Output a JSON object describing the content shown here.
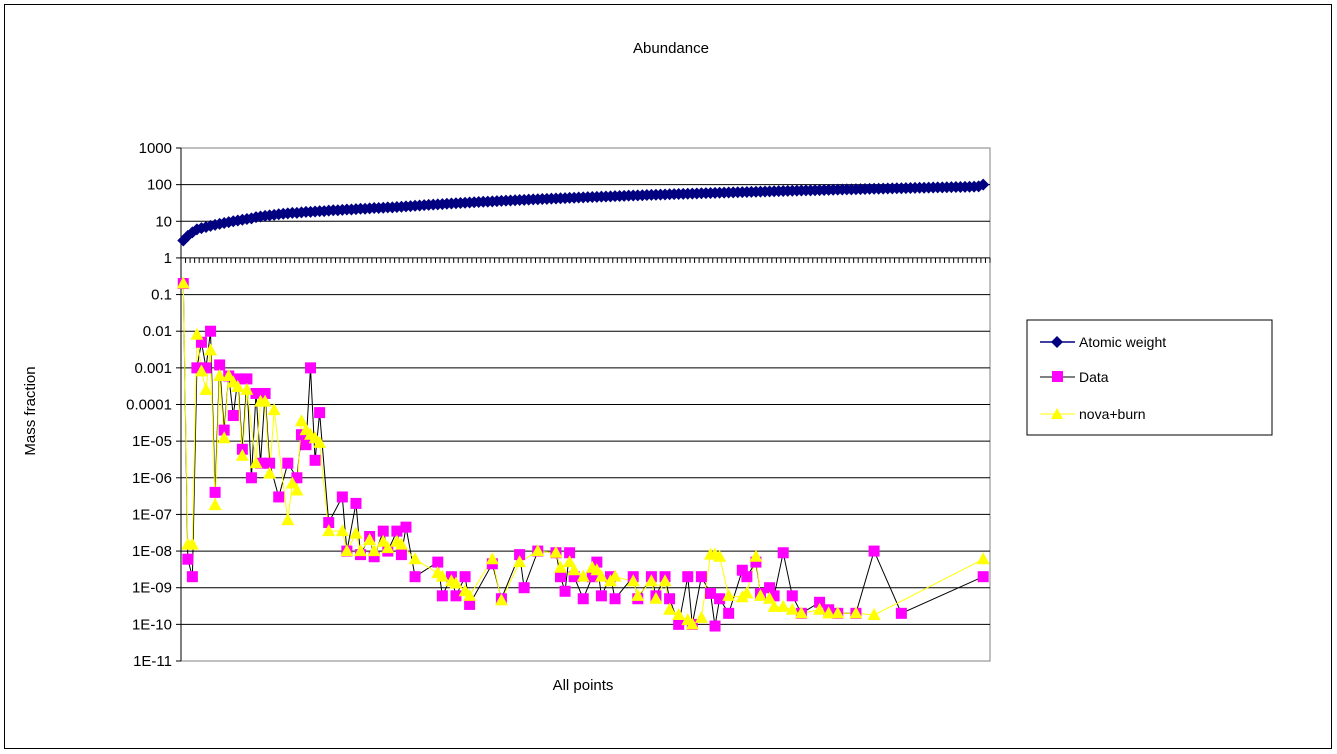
{
  "chart_data": {
    "type": "line",
    "title": "Abundance",
    "xlabel": "All points",
    "ylabel": "Mass fraction",
    "y_scale": "log",
    "ylim": [
      1e-11,
      1000
    ],
    "y_tick_labels": [
      "1000",
      "100",
      "10",
      "1",
      "0.1",
      "0.01",
      "0.001",
      "0.0001",
      "1E-05",
      "1E-06",
      "1E-07",
      "1E-08",
      "1E-09",
      "1E-10",
      "1E-11"
    ],
    "grid": "horizontal",
    "legend_position": "right",
    "x_count": 178,
    "series": [
      {
        "name": "Atomic weight",
        "color": "#000080",
        "marker": "diamond",
        "values": [
          3,
          4,
          5,
          6,
          6.5,
          7,
          7.5,
          8,
          8.5,
          9,
          9.5,
          10,
          10.5,
          11,
          11.5,
          12,
          13,
          13.5,
          14,
          14.5,
          15,
          15.5,
          16,
          16.5,
          17,
          17,
          17.5,
          18,
          18,
          18.5,
          19,
          19,
          19.5,
          20,
          20,
          20.5,
          21,
          21,
          21.5,
          22,
          22,
          22.5,
          23,
          23,
          23.5,
          24,
          24,
          24.5,
          25,
          25.5,
          26,
          26.5,
          27,
          27.5,
          28,
          28.5,
          29,
          29.5,
          30,
          30.5,
          31,
          31.5,
          32,
          32.5,
          33,
          33.5,
          34,
          34.5,
          35,
          35.5,
          36,
          36.5,
          37,
          37.5,
          38,
          38.5,
          39,
          39.5,
          40,
          40.5,
          41,
          41.5,
          42,
          42.5,
          43,
          43.5,
          44,
          44.5,
          45,
          45.5,
          46,
          46.5,
          47,
          47.5,
          48,
          48.5,
          49,
          49.5,
          50,
          50.5,
          51,
          51.5,
          52,
          52.5,
          53,
          53.5,
          54,
          54.5,
          55,
          55.5,
          56,
          56.5,
          57,
          57.5,
          58,
          58.5,
          59,
          59.5,
          60,
          60.5,
          61,
          61.5,
          62,
          62.5,
          63,
          63.5,
          64,
          64.5,
          65,
          65.5,
          66,
          66.5,
          67,
          67.5,
          68,
          68.5,
          69,
          69.5,
          70,
          70.5,
          71,
          71.5,
          72,
          72.5,
          73,
          73.5,
          74,
          74.5,
          75,
          75.5,
          76,
          76.5,
          77,
          77.5,
          78,
          78.5,
          79,
          79.5,
          80,
          80.5,
          81,
          81.5,
          82,
          82.5,
          83,
          83.5,
          84,
          84.5,
          85,
          85.5,
          86,
          86.5,
          87,
          87.5,
          88,
          90,
          100
        ]
      },
      {
        "name": "Data",
        "color": "#ff00ff",
        "marker": "square",
        "points": [
          [
            0,
            0.2
          ],
          [
            1,
            6e-09
          ],
          [
            2,
            2e-09
          ],
          [
            3,
            0.001
          ],
          [
            4,
            0.005
          ],
          [
            5,
            0.001
          ],
          [
            6,
            0.01
          ],
          [
            7,
            4e-07
          ],
          [
            8,
            0.0012
          ],
          [
            9,
            2e-05
          ],
          [
            10,
            0.0006
          ],
          [
            11,
            5e-05
          ],
          [
            12,
            0.0005
          ],
          [
            13,
            6e-06
          ],
          [
            14,
            0.0005
          ],
          [
            15,
            1e-06
          ],
          [
            16,
            0.0002
          ],
          [
            17,
            2.5e-06
          ],
          [
            18,
            0.0002
          ],
          [
            19,
            2.5e-06
          ],
          [
            21,
            3e-07
          ],
          [
            23,
            2.5e-06
          ],
          [
            25,
            1e-06
          ],
          [
            26,
            1.5e-05
          ],
          [
            27,
            8e-06
          ],
          [
            28,
            0.001
          ],
          [
            29,
            3e-06
          ],
          [
            30,
            6e-05
          ],
          [
            32,
            6e-08
          ],
          [
            35,
            3e-07
          ],
          [
            36,
            1e-08
          ],
          [
            38,
            2e-07
          ],
          [
            39,
            8e-09
          ],
          [
            41,
            2.5e-08
          ],
          [
            42,
            7e-09
          ],
          [
            44,
            3.5e-08
          ],
          [
            45,
            1e-08
          ],
          [
            47,
            3.5e-08
          ],
          [
            48,
            8e-09
          ],
          [
            49,
            4.5e-08
          ],
          [
            51,
            2e-09
          ],
          [
            56,
            5e-09
          ],
          [
            57,
            6e-10
          ],
          [
            59,
            2e-09
          ],
          [
            60,
            6e-10
          ],
          [
            62,
            2e-09
          ],
          [
            63,
            3.5e-10
          ],
          [
            68,
            4.5e-09
          ],
          [
            70,
            5e-10
          ],
          [
            74,
            8e-09
          ],
          [
            75,
            1e-09
          ],
          [
            78,
            1e-08
          ],
          [
            82,
            9e-09
          ],
          [
            83,
            2e-09
          ],
          [
            84,
            8e-10
          ],
          [
            85,
            9e-09
          ],
          [
            86,
            2e-09
          ],
          [
            88,
            5e-10
          ],
          [
            90,
            2e-09
          ],
          [
            91,
            5e-09
          ],
          [
            92,
            6e-10
          ],
          [
            94,
            2e-09
          ],
          [
            95,
            5e-10
          ],
          [
            99,
            2e-09
          ],
          [
            100,
            5e-10
          ],
          [
            103,
            2e-09
          ],
          [
            104,
            6e-10
          ],
          [
            106,
            2e-09
          ],
          [
            107,
            5e-10
          ],
          [
            109,
            1e-10
          ],
          [
            111,
            2e-09
          ],
          [
            112,
            1e-10
          ],
          [
            114,
            2e-09
          ],
          [
            116,
            7e-10
          ],
          [
            117,
            9e-11
          ],
          [
            118,
            5e-10
          ],
          [
            120,
            2e-10
          ],
          [
            123,
            3e-09
          ],
          [
            124,
            2e-09
          ],
          [
            126,
            5e-09
          ],
          [
            127,
            7e-10
          ],
          [
            129,
            1e-09
          ],
          [
            130,
            6e-10
          ],
          [
            132,
            9e-09
          ],
          [
            134,
            6e-10
          ],
          [
            136,
            2e-10
          ],
          [
            140,
            4e-10
          ],
          [
            142,
            2.5e-10
          ],
          [
            144,
            2e-10
          ],
          [
            148,
            2e-10
          ],
          [
            152,
            1e-08
          ],
          [
            158,
            2e-10
          ],
          [
            176,
            2e-09
          ]
        ]
      },
      {
        "name": "nova+burn",
        "color": "#ffff00",
        "marker": "triangle",
        "points": [
          [
            0,
            0.2
          ],
          [
            1,
            1.5e-08
          ],
          [
            2,
            1.5e-08
          ],
          [
            3,
            0.008
          ],
          [
            4,
            0.0008
          ],
          [
            5,
            0.00025
          ],
          [
            6,
            0.003
          ],
          [
            7,
            1.8e-07
          ],
          [
            8,
            0.0006
          ],
          [
            9,
            1.2e-05
          ],
          [
            10,
            0.0006
          ],
          [
            11,
            0.0004
          ],
          [
            12,
            0.0003
          ],
          [
            13,
            4e-06
          ],
          [
            14,
            0.00025
          ],
          [
            16,
            2.5e-06
          ],
          [
            17,
            0.00012
          ],
          [
            18,
            0.00012
          ],
          [
            19,
            1.3e-06
          ],
          [
            20,
            7e-05
          ],
          [
            23,
            7e-08
          ],
          [
            24,
            7e-07
          ],
          [
            25,
            4.5e-07
          ],
          [
            26,
            3.5e-05
          ],
          [
            27,
            2e-05
          ],
          [
            28,
            1.5e-05
          ],
          [
            29,
            1.2e-05
          ],
          [
            30,
            9e-06
          ],
          [
            32,
            3.5e-08
          ],
          [
            35,
            3.5e-08
          ],
          [
            36,
            1e-08
          ],
          [
            38,
            3e-08
          ],
          [
            39,
            1e-08
          ],
          [
            41,
            2e-08
          ],
          [
            42,
            1e-08
          ],
          [
            44,
            1.8e-08
          ],
          [
            45,
            1.2e-08
          ],
          [
            47,
            1.8e-08
          ],
          [
            48,
            1.5e-08
          ],
          [
            51,
            6e-09
          ],
          [
            56,
            2.5e-09
          ],
          [
            57,
            2e-09
          ],
          [
            59,
            1.5e-09
          ],
          [
            60,
            1.3e-09
          ],
          [
            62,
            8e-10
          ],
          [
            63,
            6e-10
          ],
          [
            68,
            6e-09
          ],
          [
            70,
            4.5e-10
          ],
          [
            74,
            5e-09
          ],
          [
            78,
            1e-08
          ],
          [
            82,
            9e-09
          ],
          [
            83,
            3.5e-09
          ],
          [
            85,
            5e-09
          ],
          [
            86,
            3e-09
          ],
          [
            88,
            2e-09
          ],
          [
            90,
            3.5e-09
          ],
          [
            91,
            3e-09
          ],
          [
            92,
            2e-09
          ],
          [
            94,
            1.5e-09
          ],
          [
            95,
            2e-09
          ],
          [
            99,
            1.5e-09
          ],
          [
            100,
            6e-10
          ],
          [
            103,
            1.5e-09
          ],
          [
            104,
            5e-10
          ],
          [
            106,
            1.5e-09
          ],
          [
            107,
            2.5e-10
          ],
          [
            109,
            1.8e-10
          ],
          [
            111,
            1.3e-10
          ],
          [
            112,
            1e-10
          ],
          [
            114,
            1.5e-10
          ],
          [
            116,
            8e-09
          ],
          [
            117,
            8e-09
          ],
          [
            118,
            7e-09
          ],
          [
            120,
            6e-10
          ],
          [
            123,
            5.5e-10
          ],
          [
            124,
            7e-10
          ],
          [
            126,
            7e-09
          ],
          [
            127,
            6e-10
          ],
          [
            129,
            5e-10
          ],
          [
            130,
            3e-10
          ],
          [
            132,
            3e-10
          ],
          [
            134,
            2.5e-10
          ],
          [
            136,
            2e-10
          ],
          [
            140,
            2.5e-10
          ],
          [
            142,
            2e-10
          ],
          [
            144,
            2e-10
          ],
          [
            148,
            2e-10
          ],
          [
            152,
            1.8e-10
          ],
          [
            176,
            6e-09
          ]
        ]
      }
    ]
  }
}
